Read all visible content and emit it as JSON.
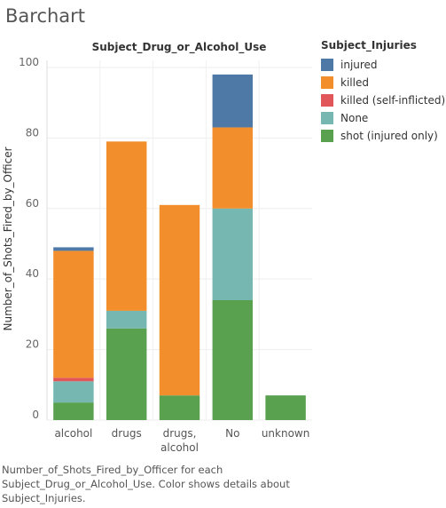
{
  "sheet_title": "Barchart",
  "caption": "Number_of_Shots_Fired_by_Officer for each Subject_Drug_or_Alcohol_Use.  Color shows details about Subject_Injuries.",
  "legend": {
    "title": "Subject_Injuries",
    "items": [
      {
        "label": "injured",
        "color": "#4e79a7"
      },
      {
        "label": "killed",
        "color": "#f28e2b"
      },
      {
        "label": "killed (self-inflicted)",
        "color": "#e15759"
      },
      {
        "label": "None",
        "color": "#76b7b2"
      },
      {
        "label": "shot (injured only)",
        "color": "#59a14f"
      }
    ]
  },
  "chart_data": {
    "type": "bar",
    "stacked": true,
    "title": "Subject_Drug_or_Alcohol_Use",
    "xlabel": "",
    "ylabel": "Number_of_Shots_Fired_by_Officer",
    "ylim": [
      0,
      102
    ],
    "yticks": [
      0,
      20,
      40,
      60,
      80,
      100
    ],
    "grid": true,
    "legend_position": "right",
    "categories": [
      "alcohol",
      "drugs",
      "drugs, alcohol",
      "No",
      "unknown"
    ],
    "series": [
      {
        "name": "shot (injured only)",
        "color": "#59a14f",
        "values": [
          5,
          26,
          7,
          34,
          7
        ]
      },
      {
        "name": "None",
        "color": "#76b7b2",
        "values": [
          6,
          5,
          0,
          26,
          0
        ]
      },
      {
        "name": "killed (self-inflicted)",
        "color": "#e15759",
        "values": [
          1,
          0,
          0,
          0,
          0
        ]
      },
      {
        "name": "killed",
        "color": "#f28e2b",
        "values": [
          36,
          48,
          54,
          23,
          0
        ]
      },
      {
        "name": "injured",
        "color": "#4e79a7",
        "values": [
          1,
          0,
          0,
          15,
          0
        ]
      }
    ]
  }
}
